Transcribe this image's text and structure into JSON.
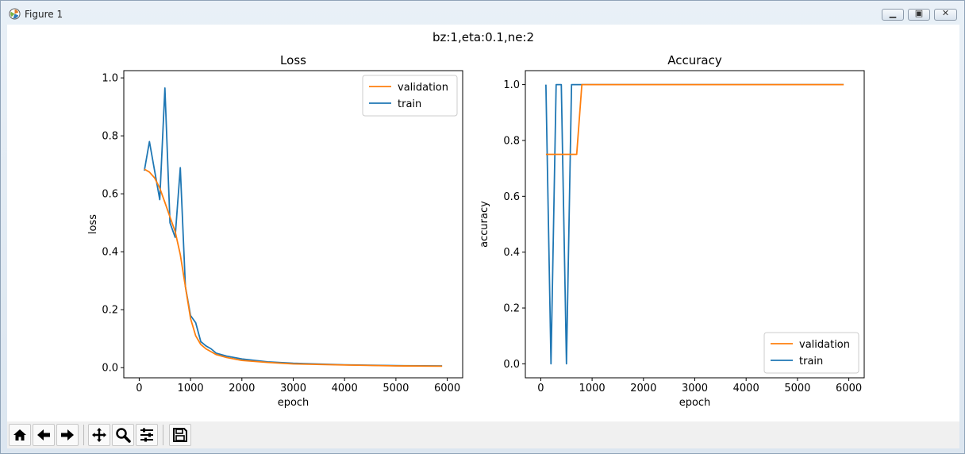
{
  "window": {
    "title": "Figure 1",
    "buttons": [
      "minimize",
      "maximize",
      "close"
    ]
  },
  "figure": {
    "suptitle": "bz:1,eta:0.1,ne:2"
  },
  "toolbar": {
    "icons": [
      "home-icon",
      "back-icon",
      "forward-icon",
      "pan-icon",
      "zoom-icon",
      "configure-subplots-icon",
      "save-icon"
    ]
  },
  "chart_data": [
    {
      "type": "line",
      "title": "Loss",
      "xlabel": "epoch",
      "ylabel": "loss",
      "xlim": [
        -300,
        6300
      ],
      "ylim": [
        -0.035,
        1.025
      ],
      "xticks": [
        0,
        1000,
        2000,
        3000,
        4000,
        5000,
        6000
      ],
      "yticks": [
        0.0,
        0.2,
        0.4,
        0.6,
        0.8,
        1.0
      ],
      "xtick_labels": [
        "0",
        "1000",
        "2000",
        "3000",
        "4000",
        "5000",
        "6000"
      ],
      "ytick_labels": [
        "0.0",
        "0.2",
        "0.4",
        "0.6",
        "0.8",
        "1.0"
      ],
      "legend": {
        "placement": "top-right",
        "entries": [
          "validation",
          "train"
        ]
      },
      "series": [
        {
          "name": "validation",
          "color": "#ff7f0e",
          "x": [
            100,
            200,
            300,
            400,
            500,
            600,
            700,
            800,
            900,
            1000,
            1100,
            1200,
            1300,
            1400,
            1500,
            1700,
            2000,
            2500,
            3000,
            4000,
            5000,
            5900
          ],
          "y": [
            0.685,
            0.675,
            0.655,
            0.62,
            0.57,
            0.52,
            0.47,
            0.39,
            0.28,
            0.17,
            0.11,
            0.08,
            0.065,
            0.055,
            0.045,
            0.035,
            0.025,
            0.018,
            0.013,
            0.009,
            0.006,
            0.005
          ]
        },
        {
          "name": "train",
          "color": "#1f77b4",
          "x": [
            100,
            200,
            300,
            400,
            500,
            600,
            700,
            800,
            900,
            1000,
            1100,
            1200,
            1300,
            1400,
            1500,
            1700,
            2000,
            2500,
            3000,
            4000,
            5000,
            5900
          ],
          "y": [
            0.68,
            0.78,
            0.68,
            0.58,
            0.965,
            0.5,
            0.45,
            0.69,
            0.28,
            0.18,
            0.155,
            0.09,
            0.075,
            0.065,
            0.05,
            0.04,
            0.03,
            0.02,
            0.015,
            0.01,
            0.007,
            0.006
          ]
        }
      ]
    },
    {
      "type": "line",
      "title": "Accuracy",
      "xlabel": "epoch",
      "ylabel": "accuracy",
      "xlim": [
        -300,
        6300
      ],
      "ylim": [
        -0.05,
        1.05
      ],
      "xticks": [
        0,
        1000,
        2000,
        3000,
        4000,
        5000,
        6000
      ],
      "yticks": [
        0.0,
        0.2,
        0.4,
        0.6,
        0.8,
        1.0
      ],
      "xtick_labels": [
        "0",
        "1000",
        "2000",
        "3000",
        "4000",
        "5000",
        "6000"
      ],
      "ytick_labels": [
        "0.0",
        "0.2",
        "0.4",
        "0.6",
        "0.8",
        "1.0"
      ],
      "legend": {
        "placement": "bottom-right",
        "entries": [
          "validation",
          "train"
        ]
      },
      "series": [
        {
          "name": "validation",
          "color": "#ff7f0e",
          "x": [
            100,
            200,
            300,
            400,
            500,
            600,
            700,
            800,
            900,
            1000,
            2000,
            3000,
            4000,
            5000,
            5900
          ],
          "y": [
            0.75,
            0.75,
            0.75,
            0.75,
            0.75,
            0.75,
            0.75,
            1.0,
            1.0,
            1.0,
            1.0,
            1.0,
            1.0,
            1.0,
            1.0
          ]
        },
        {
          "name": "train",
          "color": "#1f77b4",
          "x": [
            100,
            200,
            300,
            400,
            500,
            600,
            700,
            800,
            900,
            1000,
            2000,
            3000,
            4000,
            5000,
            5900
          ],
          "y": [
            1.0,
            0.0,
            1.0,
            1.0,
            0.0,
            1.0,
            1.0,
            1.0,
            1.0,
            1.0,
            1.0,
            1.0,
            1.0,
            1.0,
            1.0
          ]
        }
      ]
    }
  ]
}
